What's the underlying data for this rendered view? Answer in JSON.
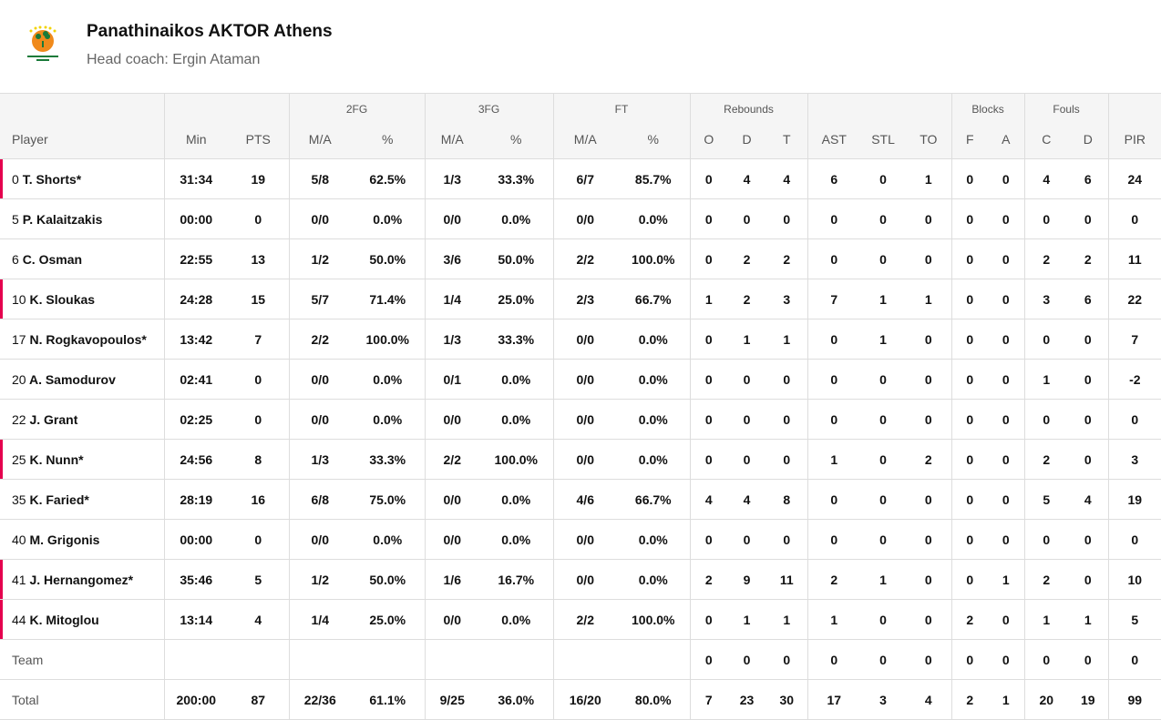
{
  "team": {
    "name": "Panathinaikos AKTOR Athens",
    "coach": "Head coach: Ergin Ataman",
    "logo_text": "PANATHINAIKOS BC AKTOR",
    "accent": "#e5004e"
  },
  "groups": [
    "",
    "",
    "",
    "2FG",
    "3FG",
    "FT",
    "Rebounds",
    "",
    "Blocks",
    "Fouls",
    ""
  ],
  "columns": [
    "Player",
    "Min",
    "PTS",
    "M/A",
    "%",
    "M/A",
    "%",
    "M/A",
    "%",
    "O",
    "D",
    "T",
    "AST",
    "STL",
    "TO",
    "F",
    "A",
    "C",
    "D",
    "PIR"
  ],
  "players": [
    {
      "num": "0",
      "name": "T. Shorts*",
      "on_court": true,
      "stats": [
        "31:34",
        "19",
        "5/8",
        "62.5%",
        "1/3",
        "33.3%",
        "6/7",
        "85.7%",
        "0",
        "4",
        "4",
        "6",
        "0",
        "1",
        "0",
        "0",
        "4",
        "6",
        "24"
      ]
    },
    {
      "num": "5",
      "name": "P. Kalaitzakis",
      "on_court": false,
      "stats": [
        "00:00",
        "0",
        "0/0",
        "0.0%",
        "0/0",
        "0.0%",
        "0/0",
        "0.0%",
        "0",
        "0",
        "0",
        "0",
        "0",
        "0",
        "0",
        "0",
        "0",
        "0",
        "0"
      ]
    },
    {
      "num": "6",
      "name": "C. Osman",
      "on_court": false,
      "stats": [
        "22:55",
        "13",
        "1/2",
        "50.0%",
        "3/6",
        "50.0%",
        "2/2",
        "100.0%",
        "0",
        "2",
        "2",
        "0",
        "0",
        "0",
        "0",
        "0",
        "2",
        "2",
        "11"
      ]
    },
    {
      "num": "10",
      "name": "K. Sloukas",
      "on_court": true,
      "stats": [
        "24:28",
        "15",
        "5/7",
        "71.4%",
        "1/4",
        "25.0%",
        "2/3",
        "66.7%",
        "1",
        "2",
        "3",
        "7",
        "1",
        "1",
        "0",
        "0",
        "3",
        "6",
        "22"
      ]
    },
    {
      "num": "17",
      "name": "N. Rogkavopoulos*",
      "on_court": false,
      "stats": [
        "13:42",
        "7",
        "2/2",
        "100.0%",
        "1/3",
        "33.3%",
        "0/0",
        "0.0%",
        "0",
        "1",
        "1",
        "0",
        "1",
        "0",
        "0",
        "0",
        "0",
        "0",
        "7"
      ]
    },
    {
      "num": "20",
      "name": "A. Samodurov",
      "on_court": false,
      "stats": [
        "02:41",
        "0",
        "0/0",
        "0.0%",
        "0/1",
        "0.0%",
        "0/0",
        "0.0%",
        "0",
        "0",
        "0",
        "0",
        "0",
        "0",
        "0",
        "0",
        "1",
        "0",
        "-2"
      ]
    },
    {
      "num": "22",
      "name": "J. Grant",
      "on_court": false,
      "stats": [
        "02:25",
        "0",
        "0/0",
        "0.0%",
        "0/0",
        "0.0%",
        "0/0",
        "0.0%",
        "0",
        "0",
        "0",
        "0",
        "0",
        "0",
        "0",
        "0",
        "0",
        "0",
        "0"
      ]
    },
    {
      "num": "25",
      "name": "K. Nunn*",
      "on_court": true,
      "stats": [
        "24:56",
        "8",
        "1/3",
        "33.3%",
        "2/2",
        "100.0%",
        "0/0",
        "0.0%",
        "0",
        "0",
        "0",
        "1",
        "0",
        "2",
        "0",
        "0",
        "2",
        "0",
        "3"
      ]
    },
    {
      "num": "35",
      "name": "K. Faried*",
      "on_court": false,
      "stats": [
        "28:19",
        "16",
        "6/8",
        "75.0%",
        "0/0",
        "0.0%",
        "4/6",
        "66.7%",
        "4",
        "4",
        "8",
        "0",
        "0",
        "0",
        "0",
        "0",
        "5",
        "4",
        "19"
      ]
    },
    {
      "num": "40",
      "name": "M. Grigonis",
      "on_court": false,
      "stats": [
        "00:00",
        "0",
        "0/0",
        "0.0%",
        "0/0",
        "0.0%",
        "0/0",
        "0.0%",
        "0",
        "0",
        "0",
        "0",
        "0",
        "0",
        "0",
        "0",
        "0",
        "0",
        "0"
      ]
    },
    {
      "num": "41",
      "name": "J. Hernangomez*",
      "on_court": true,
      "stats": [
        "35:46",
        "5",
        "1/2",
        "50.0%",
        "1/6",
        "16.7%",
        "0/0",
        "0.0%",
        "2",
        "9",
        "11",
        "2",
        "1",
        "0",
        "0",
        "1",
        "2",
        "0",
        "10"
      ]
    },
    {
      "num": "44",
      "name": "K. Mitoglou",
      "on_court": true,
      "stats": [
        "13:14",
        "4",
        "1/4",
        "25.0%",
        "0/0",
        "0.0%",
        "2/2",
        "100.0%",
        "0",
        "1",
        "1",
        "1",
        "0",
        "0",
        "2",
        "0",
        "1",
        "1",
        "5"
      ]
    }
  ],
  "team_row": {
    "label": "Team",
    "stats": [
      "",
      "",
      "",
      "",
      "",
      "",
      "",
      "",
      "0",
      "0",
      "0",
      "0",
      "0",
      "0",
      "0",
      "0",
      "0",
      "0",
      "0"
    ]
  },
  "total_row": {
    "label": "Total",
    "stats": [
      "200:00",
      "87",
      "22/36",
      "61.1%",
      "9/25",
      "36.0%",
      "16/20",
      "80.0%",
      "7",
      "23",
      "30",
      "17",
      "3",
      "4",
      "2",
      "1",
      "20",
      "19",
      "99"
    ]
  }
}
